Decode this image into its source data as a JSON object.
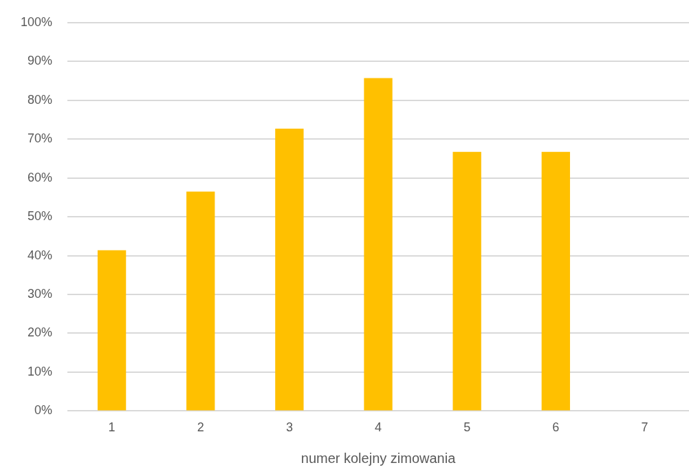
{
  "chart_data": {
    "type": "bar",
    "xlabel": "numer kolejny zimowania",
    "categories": [
      "1",
      "2",
      "3",
      "4",
      "5",
      "6",
      "7"
    ],
    "values": [
      41.4,
      56.5,
      72.7,
      85.7,
      66.7,
      66.7,
      null
    ],
    "color": "#ffc000",
    "ylim": [
      0,
      100
    ],
    "yticks": [
      {
        "value": 0,
        "label": "0%"
      },
      {
        "value": 10,
        "label": "10%"
      },
      {
        "value": 20,
        "label": "20%"
      },
      {
        "value": 30,
        "label": "30%"
      },
      {
        "value": 40,
        "label": "40%"
      },
      {
        "value": 50,
        "label": "50%"
      },
      {
        "value": 60,
        "label": "60%"
      },
      {
        "value": 70,
        "label": "70%"
      },
      {
        "value": 80,
        "label": "80%"
      },
      {
        "value": 90,
        "label": "90%"
      },
      {
        "value": 100,
        "label": "100%"
      }
    ],
    "grid": "y",
    "legend": false
  }
}
